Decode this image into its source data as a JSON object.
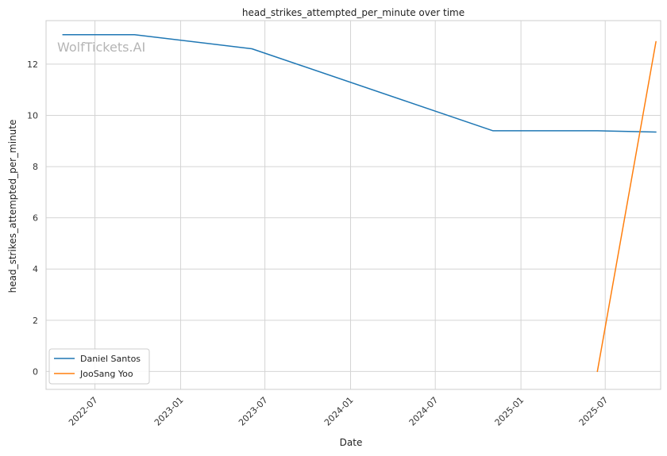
{
  "chart_data": {
    "type": "line",
    "title": "head_strikes_attempted_per_minute over time",
    "xlabel": "Date",
    "ylabel": "head_strikes_attempted_per_minute",
    "watermark": "WolfTickets.AI",
    "xlim": [
      "2022-03-18",
      "2025-10-28"
    ],
    "ylim": [
      -0.7,
      13.7
    ],
    "x_ticks": [
      "2022-07-01",
      "2023-01-01",
      "2023-07-01",
      "2024-01-01",
      "2024-07-01",
      "2025-01-01",
      "2025-07-01"
    ],
    "x_tick_labels": [
      "2022-07",
      "2023-01",
      "2023-07",
      "2024-01",
      "2024-07",
      "2025-01",
      "2025-07"
    ],
    "y_ticks": [
      0,
      2,
      4,
      6,
      8,
      10,
      12
    ],
    "y_tick_labels": [
      "0",
      "2",
      "4",
      "6",
      "8",
      "10",
      "12"
    ],
    "grid": true,
    "legend_position": "lower-left",
    "series": [
      {
        "name": "Daniel Santos",
        "color": "#1f77b4",
        "x": [
          "2022-04-23",
          "2022-09-24",
          "2023-06-03",
          "2024-11-02",
          "2025-06-14",
          "2025-10-18"
        ],
        "y": [
          13.15,
          13.15,
          12.6,
          9.4,
          9.4,
          9.35
        ]
      },
      {
        "name": "JooSang Yoo",
        "color": "#ff7f0e",
        "x": [
          "2025-06-14",
          "2025-10-18"
        ],
        "y": [
          0.0,
          12.88
        ]
      }
    ]
  }
}
